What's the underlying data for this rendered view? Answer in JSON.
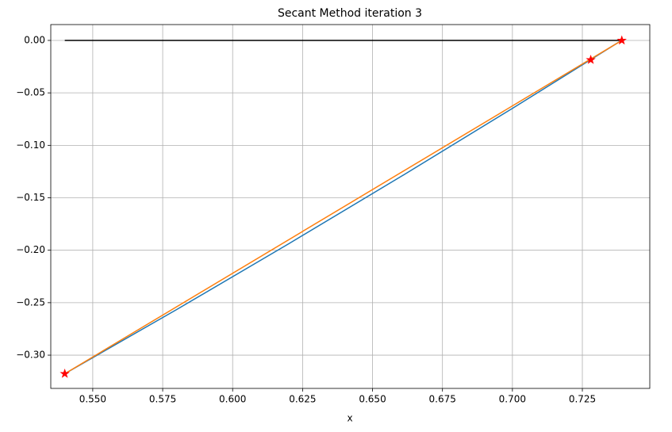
{
  "chart_data": {
    "type": "line",
    "title": "Secant Method iteration 3",
    "x_label": "x",
    "xlim": [
      0.535,
      0.7491
    ],
    "ylim": [
      -0.3317,
      0.0151
    ],
    "xticks": [
      {
        "value": 0.55,
        "label": "0.550"
      },
      {
        "value": 0.575,
        "label": "0.575"
      },
      {
        "value": 0.6,
        "label": "0.600"
      },
      {
        "value": 0.625,
        "label": "0.625"
      },
      {
        "value": 0.65,
        "label": "0.650"
      },
      {
        "value": 0.675,
        "label": "0.675"
      },
      {
        "value": 0.7,
        "label": "0.700"
      },
      {
        "value": 0.725,
        "label": "0.725"
      }
    ],
    "yticks": [
      {
        "value": 0,
        "label": "0.00"
      },
      {
        "value": -0.05,
        "label": "−0.05"
      },
      {
        "value": -0.1,
        "label": "−0.10"
      },
      {
        "value": -0.15,
        "label": "−0.15"
      },
      {
        "value": -0.2,
        "label": "−0.20"
      },
      {
        "value": -0.25,
        "label": "−0.25"
      },
      {
        "value": -0.3,
        "label": "−0.30"
      }
    ],
    "grid": true,
    "series": [
      {
        "color": "#1f77b4",
        "marker": "none",
        "x": [
          0.54,
          0.58,
          0.62,
          0.66,
          0.7,
          0.739
        ],
        "values": [
          -0.3177,
          -0.2565,
          -0.1939,
          -0.13,
          -0.0648,
          0.0
        ]
      },
      {
        "color": "#ff7f0e",
        "marker": "none",
        "x": [
          0.54,
          0.7391
        ],
        "values": [
          -0.3177,
          0.0
        ]
      },
      {
        "color": "#000000",
        "marker": "none",
        "x": [
          0.54,
          0.7391
        ],
        "values": [
          0.0,
          0.0
        ]
      },
      {
        "color": "#ff0000",
        "marker": "star",
        "x": [
          0.54,
          0.728,
          0.7391
        ],
        "values": [
          -0.3177,
          -0.0185,
          0.0
        ]
      }
    ]
  }
}
